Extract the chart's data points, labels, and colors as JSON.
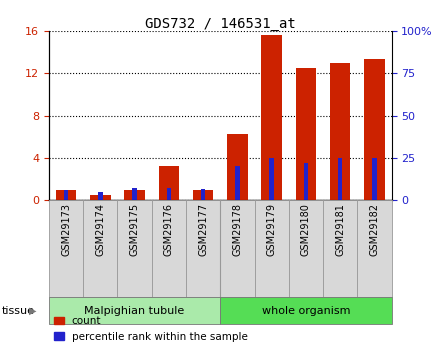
{
  "title": "GDS732 / 146531_at",
  "samples": [
    "GSM29173",
    "GSM29174",
    "GSM29175",
    "GSM29176",
    "GSM29177",
    "GSM29178",
    "GSM29179",
    "GSM29180",
    "GSM29181",
    "GSM29182"
  ],
  "count": [
    1.0,
    0.5,
    1.0,
    3.2,
    1.0,
    6.3,
    15.6,
    12.5,
    13.0,
    13.4
  ],
  "percentile_pct": [
    6.0,
    5.0,
    7.0,
    7.0,
    6.5,
    20.0,
    25.0,
    22.0,
    25.0,
    25.0
  ],
  "groups": [
    {
      "label": "Malpighian tubule",
      "start": 0,
      "end": 5
    },
    {
      "label": "whole organism",
      "start": 5,
      "end": 10
    }
  ],
  "group_colors": [
    "#aaeaaa",
    "#55dd55"
  ],
  "left_ylim": [
    0,
    16
  ],
  "right_ylim": [
    0,
    100
  ],
  "left_yticks": [
    0,
    4,
    8,
    12,
    16
  ],
  "right_yticks": [
    0,
    25,
    50,
    75,
    100
  ],
  "right_yticklabels": [
    "0",
    "25",
    "50",
    "75",
    "100%"
  ],
  "bar_color_red": "#cc2200",
  "bar_color_blue": "#2222cc",
  "bar_width": 0.6,
  "grid_color": "black",
  "bg_color": "#d8d8d8",
  "tick_label_color_left": "#cc2200",
  "tick_label_color_right": "#2222cc",
  "tissue_label": "tissue",
  "legend_count": "count",
  "legend_percentile": "percentile rank within the sample",
  "title_fontsize": 10
}
